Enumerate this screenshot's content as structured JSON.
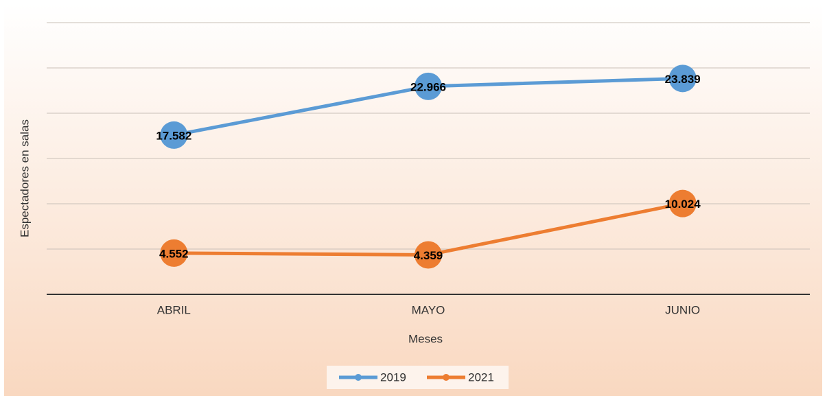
{
  "chart_data": {
    "type": "line",
    "y_label": "Espectadores en salas",
    "x_label": "Meses",
    "categories": [
      "ABRIL",
      "MAYO",
      "JUNIO"
    ],
    "series": [
      {
        "name": "2019",
        "color": "#5b9bd5",
        "values": [
          17.582,
          22.966,
          23.839
        ]
      },
      {
        "name": "2021",
        "color": "#ed7d31",
        "values": [
          4.552,
          4.359,
          10.024
        ]
      }
    ],
    "ylim": [
      0,
      30
    ],
    "yticks": [
      5,
      10,
      15,
      20,
      25,
      30
    ],
    "show_ytick_labels": false,
    "grid": true,
    "legend": "bottom"
  }
}
